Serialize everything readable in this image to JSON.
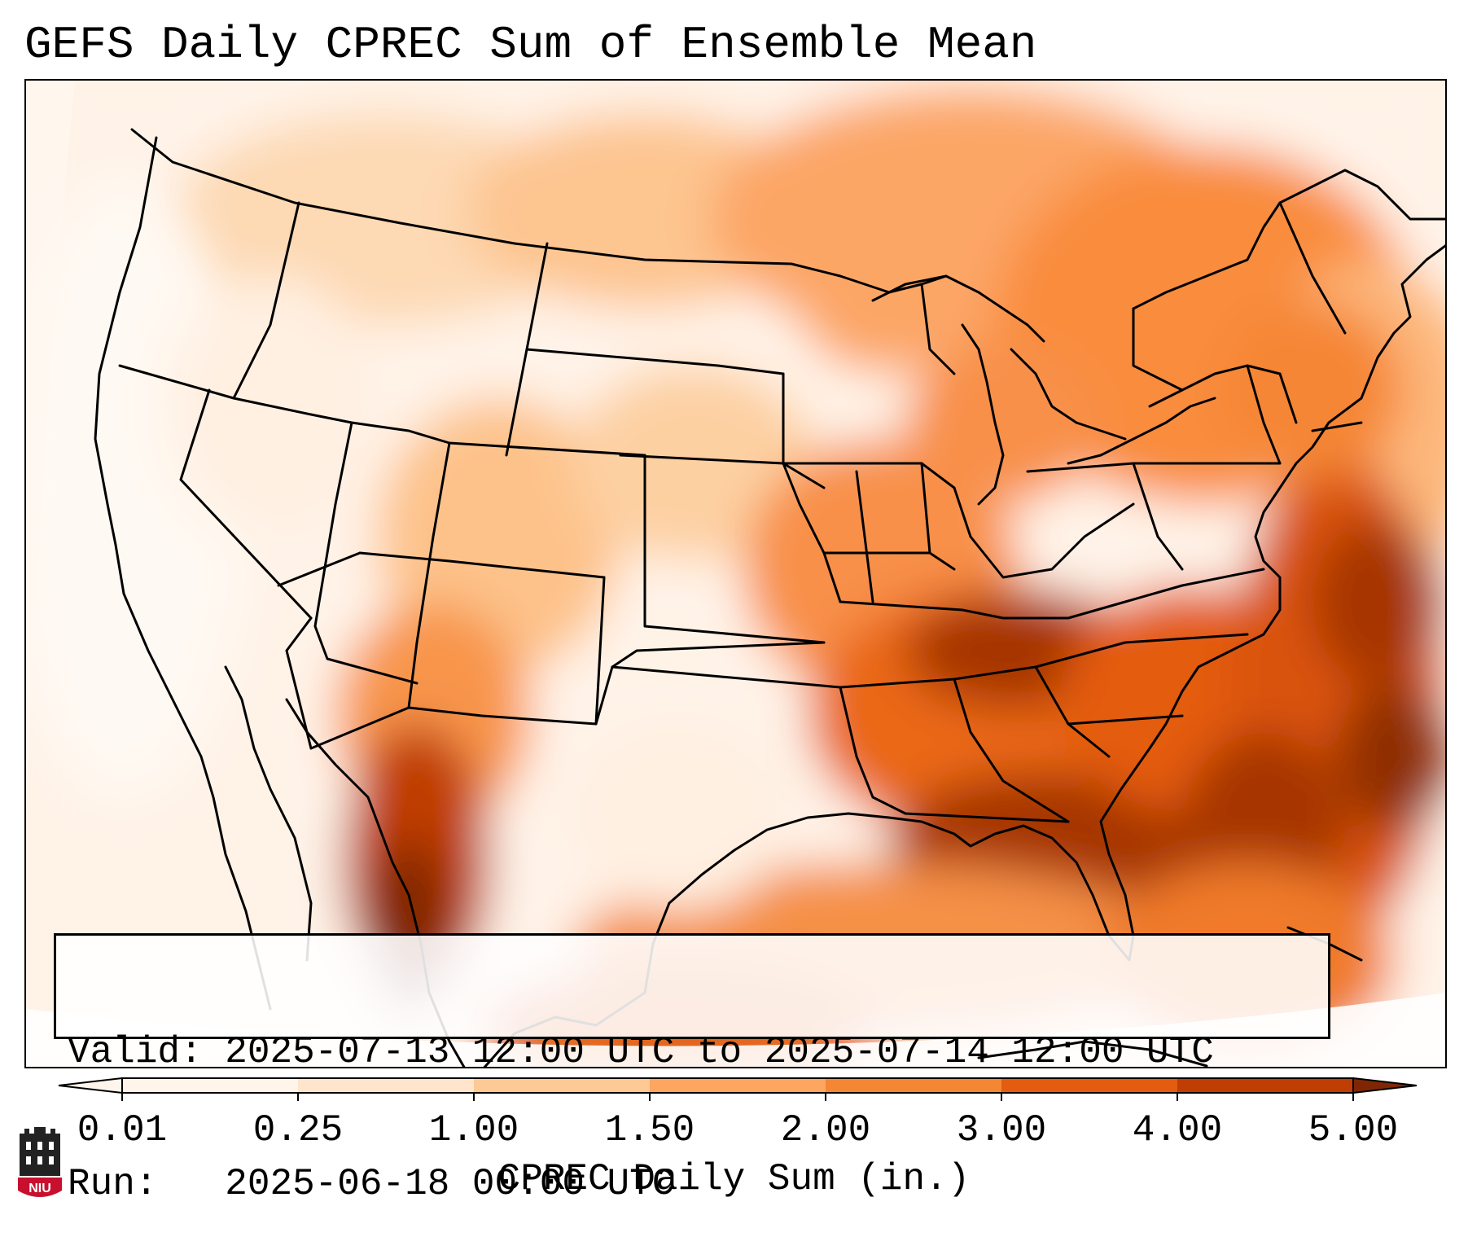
{
  "title": "GEFS Daily CPREC Sum of Ensemble Mean",
  "info": {
    "valid_label": "Valid:",
    "valid_value": "2025-07-13 12:00 UTC to 2025-07-14 12:00 UTC",
    "run_label": "Run:",
    "run_value": "2025-06-18 00:00 UTC"
  },
  "colorbar": {
    "label": "CPREC Daily Sum (in.)",
    "ticks": [
      "0.01",
      "0.25",
      "1.00",
      "1.50",
      "2.00",
      "3.00",
      "4.00",
      "5.00"
    ],
    "colors": [
      "#fff5eb",
      "#fee5cc",
      "#fdc995",
      "#fca660",
      "#f58634",
      "#e45c0f",
      "#c03d04",
      "#7f2704"
    ],
    "extend": "both"
  },
  "logo": {
    "text": "NIU",
    "icon": "niu-logo-icon",
    "color": "#c8102e"
  }
}
